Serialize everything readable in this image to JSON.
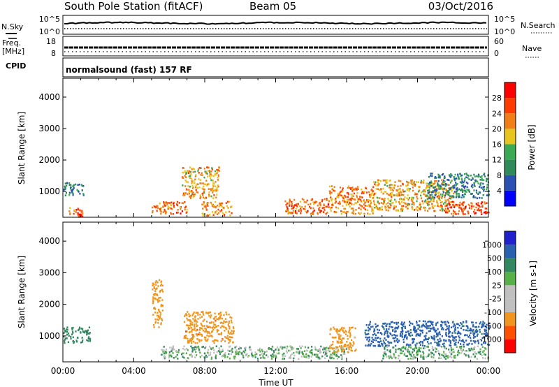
{
  "header": {
    "station": "South Pole Station (fitACF)",
    "beam": "Beam 05",
    "date": "03/Oct/2016"
  },
  "top_panels": {
    "nsky_label": "N.Sky",
    "nsky_ticks": [
      "10^5",
      "10^0"
    ],
    "nsearch_label": "N.Search",
    "nsearch_ticks": [
      "10^5",
      "10^0"
    ],
    "freq_label_1": "Freq.",
    "freq_label_2": "[MHz]",
    "freq_ticks": [
      "18",
      "8"
    ],
    "nave_label": "Nave",
    "nave_ticks": [
      "60",
      "0"
    ],
    "cpid_label": "CPID",
    "cpid_text": "normalsound (fast) 157 RF"
  },
  "colors": {
    "power": [
      "#0000ff",
      "#2b50b4",
      "#2f8a5a",
      "#3aaa55",
      "#e8c41e",
      "#f07f17",
      "#ff3b00",
      "#ff0000"
    ],
    "velocity": [
      "#ff0000",
      "#ff5000",
      "#f0961e",
      "#c0c0c0",
      "#c0c0c0",
      "#58b048",
      "#338860",
      "#2a60b0",
      "#2020cc"
    ]
  },
  "chart_data": [
    {
      "type": "heatmap",
      "title": "Power",
      "xlabel": "Time UT",
      "ylabel": "Slant Range [km]",
      "x_ticks": [
        "00:00",
        "04:00",
        "08:00",
        "12:00",
        "16:00",
        "20:00",
        "00:00"
      ],
      "xlim_hours": [
        0,
        24
      ],
      "y_ticks": [
        1000,
        2000,
        3000,
        4000
      ],
      "ylim": [
        180,
        4600
      ],
      "colorbar": {
        "label": "Power [dB]",
        "ticks": [
          4,
          8,
          12,
          16,
          20,
          24,
          28
        ],
        "range": [
          0,
          32
        ]
      },
      "regions": [
        {
          "t0": 0.0,
          "t1": 1.2,
          "r0": 900,
          "r1": 1300,
          "level": 10
        },
        {
          "t0": 0.3,
          "t1": 1.1,
          "r0": 300,
          "r1": 550,
          "level": 24
        },
        {
          "t0": 0.8,
          "t1": 1.1,
          "r0": 180,
          "r1": 300,
          "level": 28
        },
        {
          "t0": 5.0,
          "t1": 7.0,
          "r0": 300,
          "r1": 700,
          "level": 24
        },
        {
          "t0": 6.7,
          "t1": 8.8,
          "r0": 800,
          "r1": 1800,
          "level": 20
        },
        {
          "t0": 7.8,
          "t1": 9.5,
          "r0": 250,
          "r1": 700,
          "level": 22
        },
        {
          "t0": 12.5,
          "t1": 15.0,
          "r0": 300,
          "r1": 800,
          "level": 24
        },
        {
          "t0": 15.0,
          "t1": 17.5,
          "r0": 300,
          "r1": 1200,
          "level": 22
        },
        {
          "t0": 17.5,
          "t1": 22.0,
          "r0": 400,
          "r1": 1400,
          "level": 20
        },
        {
          "t0": 20.5,
          "t1": 24.0,
          "r0": 800,
          "r1": 1600,
          "level": 10
        },
        {
          "t0": 21.5,
          "t1": 24.0,
          "r0": 300,
          "r1": 700,
          "level": 26
        }
      ]
    },
    {
      "type": "heatmap",
      "title": "Velocity",
      "xlabel": "Time UT",
      "ylabel": "Slant Range [km]",
      "x_ticks": [
        "00:00",
        "04:00",
        "08:00",
        "12:00",
        "16:00",
        "20:00",
        "00:00"
      ],
      "xlim_hours": [
        0,
        24
      ],
      "y_ticks": [
        1000,
        2000,
        3000,
        4000
      ],
      "ylim": [
        180,
        4600
      ],
      "colorbar": {
        "label": "Velocity [m s-1]",
        "ticks": [
          "1000",
          "500",
          "100",
          "25",
          "-25",
          "-100",
          "-500",
          "-1000"
        ]
      },
      "regions": [
        {
          "t0": 0.0,
          "t1": 1.5,
          "r0": 800,
          "r1": 1300,
          "level": 300
        },
        {
          "t0": 5.0,
          "t1": 5.6,
          "r0": 1300,
          "r1": 2800,
          "level": -300
        },
        {
          "t0": 6.8,
          "t1": 9.6,
          "r0": 800,
          "r1": 1800,
          "level": -400
        },
        {
          "t0": 5.5,
          "t1": 16.0,
          "r0": 300,
          "r1": 700,
          "level": 60
        },
        {
          "t0": 15.0,
          "t1": 16.5,
          "r0": 500,
          "r1": 1300,
          "level": -200
        },
        {
          "t0": 17.0,
          "t1": 24.0,
          "r0": 700,
          "r1": 1500,
          "level": 600
        },
        {
          "t0": 18.0,
          "t1": 24.0,
          "r0": 300,
          "r1": 700,
          "level": 80
        }
      ]
    }
  ]
}
